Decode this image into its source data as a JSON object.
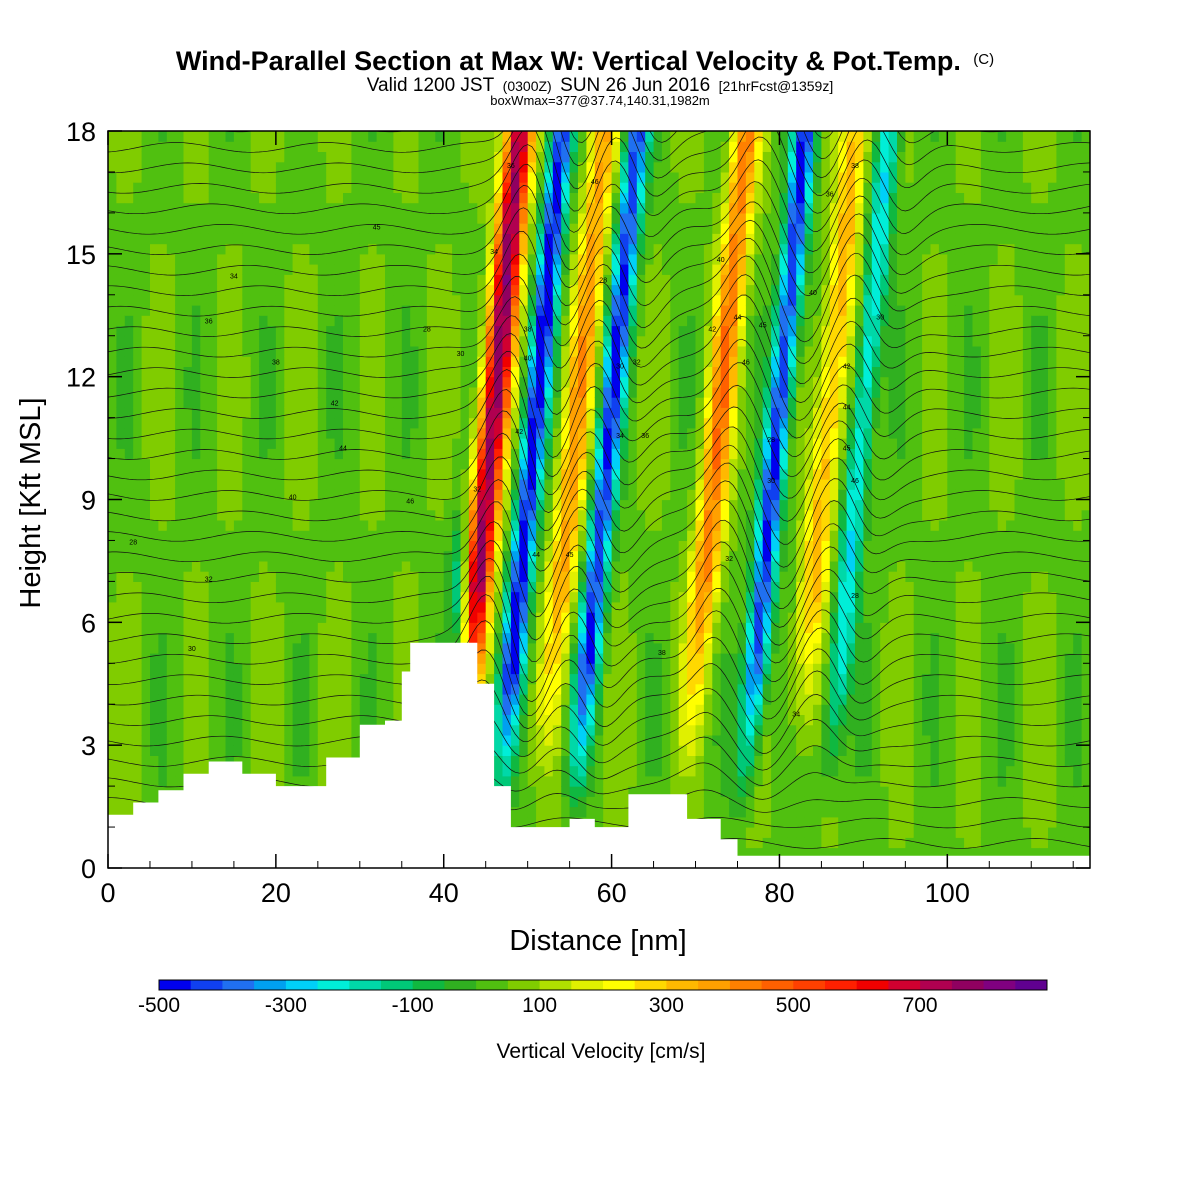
{
  "title": {
    "main": "Wind-Parallel Section at Max W: Vertical Velocity & Pot.Temp.",
    "copyright": "(C)",
    "valid_a": "Valid 1200 JST",
    "valid_b": "(0300Z)",
    "valid_c": "SUN 26 Jun 2016",
    "valid_d": "[21hrFcst@1359z]",
    "box": "boxWmax=377@37.74,140.31,1982m"
  },
  "chart_data": {
    "type": "heatmap",
    "title": "Wind-Parallel Section at Max W: Vertical Velocity & Pot.Temp.",
    "xlabel": "Distance [nm]",
    "ylabel": "Height [Kft MSL]",
    "xlim": [
      0,
      117
    ],
    "ylim": [
      0,
      18
    ],
    "x_ticks": [
      "0",
      "20",
      "40",
      "60",
      "80",
      "100"
    ],
    "y_ticks": [
      "0",
      "3",
      "6",
      "9",
      "12",
      "15",
      "18"
    ],
    "colorbar": {
      "title": "Vertical Velocity [cm/s]",
      "labels": [
        "-500",
        "-300",
        "-100",
        "100",
        "300",
        "500",
        "700"
      ],
      "levels": [
        -500,
        -450,
        -400,
        -350,
        -300,
        -250,
        -200,
        -150,
        -100,
        -50,
        0,
        50,
        100,
        150,
        200,
        250,
        300,
        350,
        400,
        450,
        500,
        550,
        600,
        650,
        700,
        750,
        800,
        850
      ],
      "colors": [
        "#0000ee",
        "#1040f0",
        "#2070f0",
        "#00a0f0",
        "#00d0f8",
        "#00eed8",
        "#00d8a8",
        "#00c878",
        "#10b840",
        "#30b020",
        "#50c010",
        "#80cc00",
        "#b0e000",
        "#e0f000",
        "#ffff00",
        "#ffd800",
        "#ffb800",
        "#ffa000",
        "#ff8000",
        "#ff6000",
        "#ff4000",
        "#ff2000",
        "#f00000",
        "#d00030",
        "#b00050",
        "#900060",
        "#800080",
        "#600090"
      ]
    },
    "updrafts_center_nm": [
      45,
      55,
      72,
      85
    ],
    "downdrafts_center_nm": [
      50,
      59,
      79,
      89
    ],
    "terrain_kft": [
      [
        0,
        1.3
      ],
      [
        3,
        1.6
      ],
      [
        6,
        1.9
      ],
      [
        9,
        2.3
      ],
      [
        12,
        2.6
      ],
      [
        16,
        2.3
      ],
      [
        20,
        2.0
      ],
      [
        26,
        2.7
      ],
      [
        30,
        3.5
      ],
      [
        33,
        3.6
      ],
      [
        35,
        4.8
      ],
      [
        36,
        5.5
      ],
      [
        43,
        5.5
      ],
      [
        44,
        4.5
      ],
      [
        46,
        2.0
      ],
      [
        48,
        1.0
      ],
      [
        52,
        1.0
      ],
      [
        55,
        1.2
      ],
      [
        58,
        1.0
      ],
      [
        62,
        1.8
      ],
      [
        65,
        1.8
      ],
      [
        69,
        1.2
      ],
      [
        73,
        0.7
      ],
      [
        75,
        0.3
      ],
      [
        117,
        0.3
      ]
    ],
    "theta_labels": [
      "28",
      "30",
      "32",
      "34",
      "36",
      "38",
      "40",
      "42",
      "44",
      "45",
      "46"
    ]
  }
}
